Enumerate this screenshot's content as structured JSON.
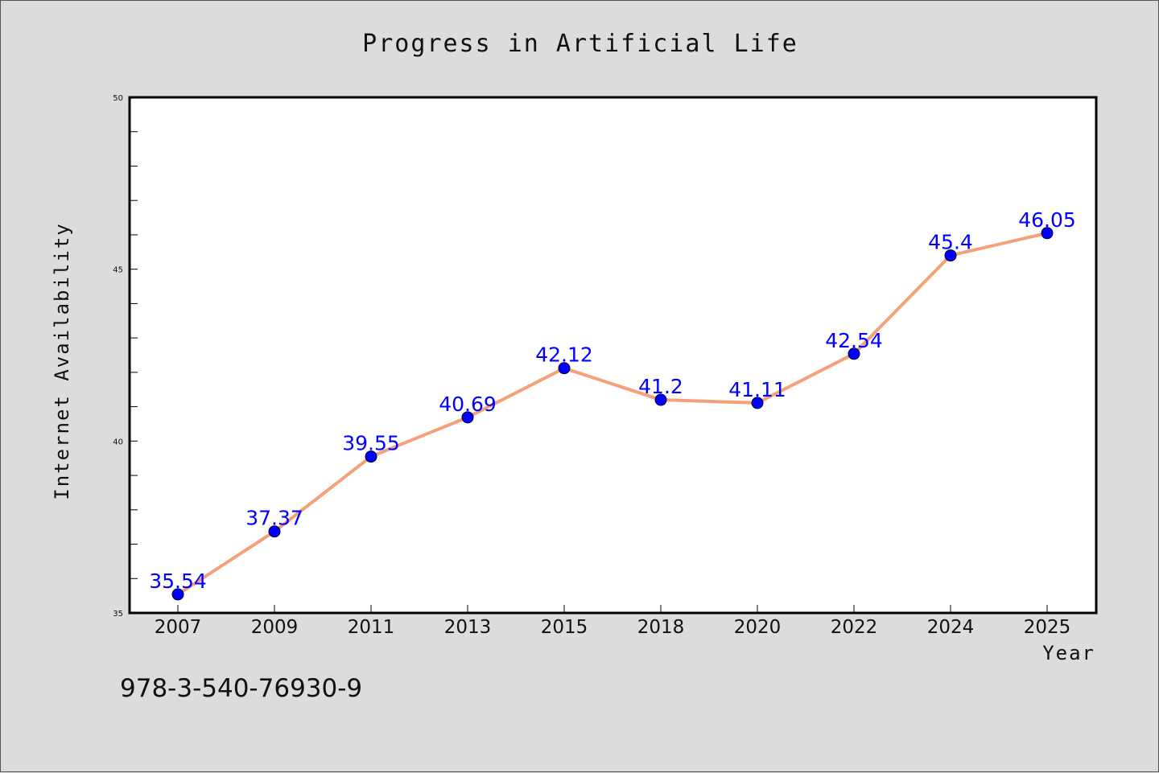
{
  "chart_data": {
    "type": "line",
    "title": "Progress in Artificial Life",
    "xlabel": "Year",
    "ylabel": "Internet Availability",
    "categories": [
      "2007",
      "2009",
      "2011",
      "2013",
      "2015",
      "2018",
      "2020",
      "2022",
      "2024",
      "2025"
    ],
    "series": [
      {
        "values": [
          35.54,
          37.37,
          39.55,
          40.69,
          42.12,
          41.2,
          41.11,
          42.54,
          45.4,
          46.05
        ],
        "labels": [
          "35.54",
          "37.37",
          "39.55",
          "40.69",
          "42.12",
          "41.2",
          "41.11",
          "42.54",
          "45.4",
          "46.05"
        ],
        "line_color": "#f5a07a",
        "marker_color": "#0000ff"
      }
    ],
    "ylim": [
      35,
      50
    ],
    "yticks": [
      35,
      40,
      45,
      50
    ],
    "ytick_labels": [
      "35",
      "40",
      "45",
      "50"
    ],
    "grid": false,
    "footer_text": "978-3-540-76930-9"
  }
}
